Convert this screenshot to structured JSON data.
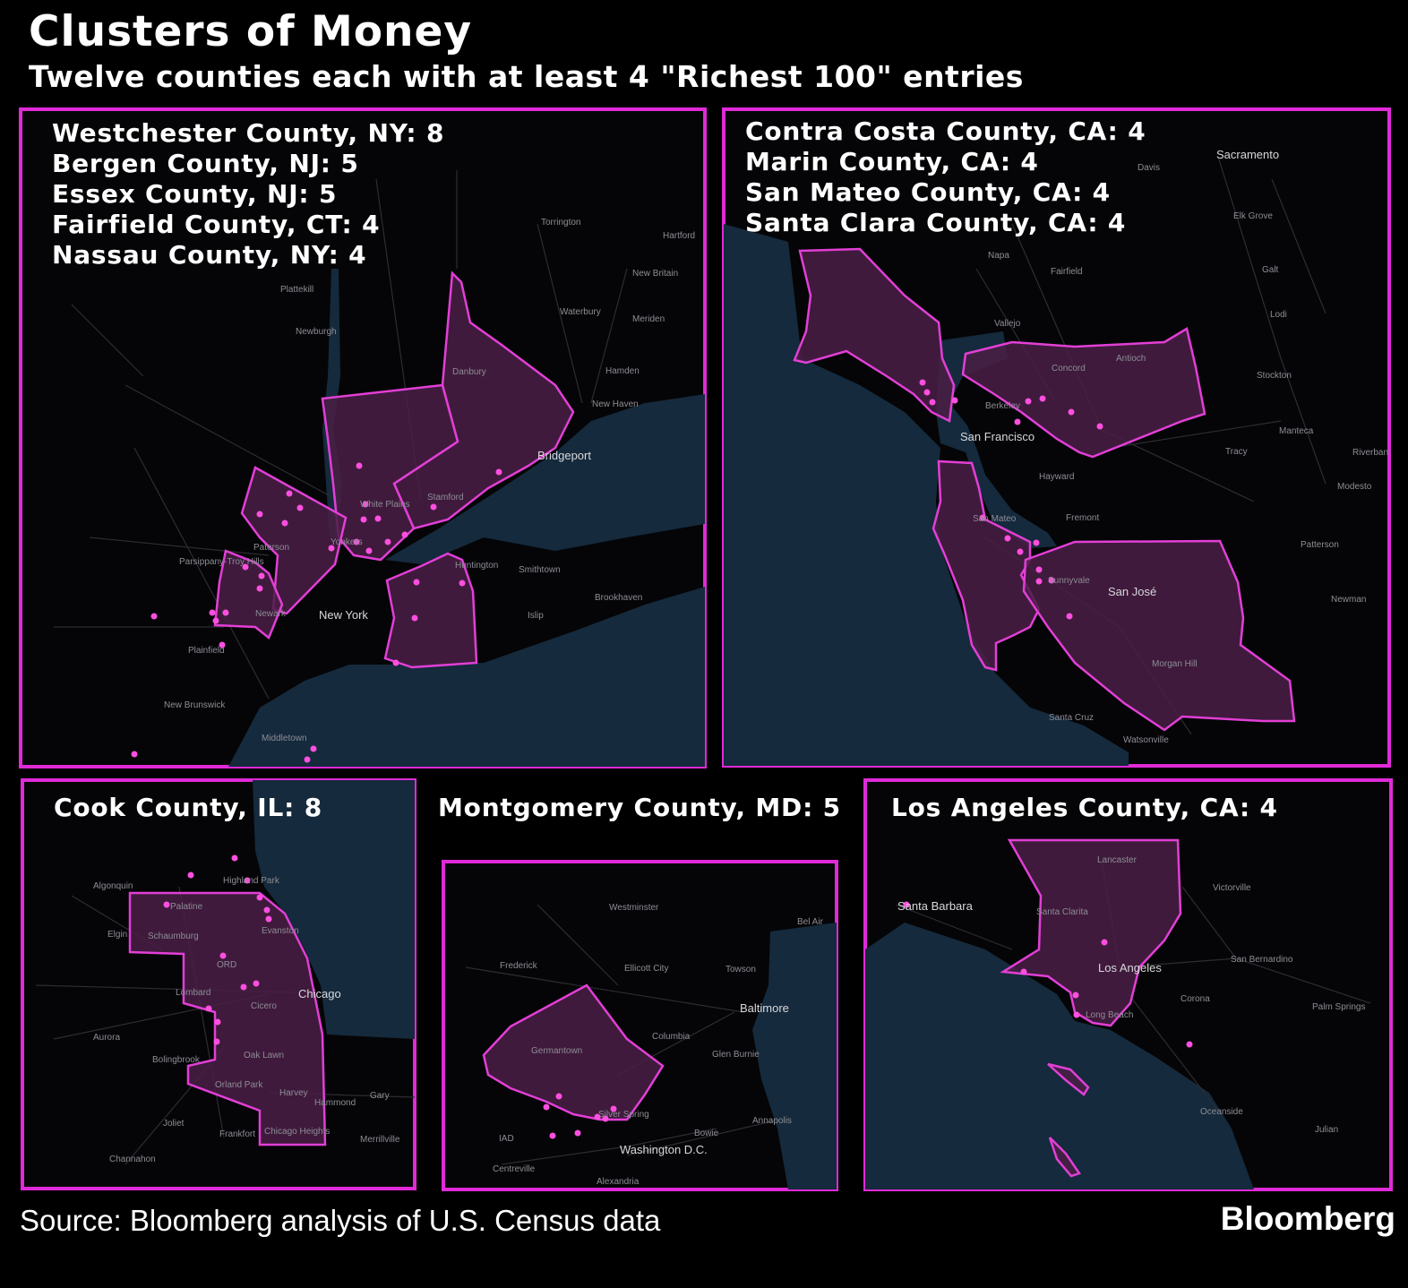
{
  "title": "Clusters of Money",
  "subtitle": "Twelve counties each with at least 4 \"Richest 100\" entries",
  "colors": {
    "border": "#e02ad8",
    "county_fill": "#4a1f45",
    "dot": "#ff4fe0",
    "water": "#152a3c",
    "land": "#050507"
  },
  "panels": {
    "northeast": {
      "counties": [
        "Westchester County, NY: 8",
        "Bergen County, NJ: 5",
        "Essex County, NJ: 5",
        "Fairfield County, CT: 4",
        "Nassau County, NY: 4"
      ],
      "cities": [
        "New York",
        "Bridgeport",
        "Stamford",
        "White Plains",
        "Yonkers",
        "Paterson",
        "Newark",
        "Huntington",
        "Danbury",
        "New Haven",
        "Waterbury",
        "Hartford",
        "Torrington",
        "Newburgh",
        "Plainfield",
        "New Brunswick",
        "Middletown",
        "Smithtown",
        "Brookhaven",
        "Islip",
        "Hamden",
        "Meriden",
        "New Britain",
        "Parsippany-Troy Hills",
        "Plattekill"
      ]
    },
    "bay_area": {
      "counties": [
        "Contra Costa County, CA: 4",
        "Marin County, CA: 4",
        "San Mateo County, CA: 4",
        "Santa Clara County, CA: 4"
      ],
      "cities": [
        "Sacramento",
        "San Francisco",
        "San José",
        "Concord",
        "Antioch",
        "Berkeley",
        "Vallejo",
        "Napa",
        "Fairfield",
        "Hayward",
        "Fremont",
        "San Mateo",
        "Sunnyvale",
        "Morgan Hill",
        "Santa Cruz",
        "Watsonville",
        "Stockton",
        "Tracy",
        "Manteca",
        "Modesto",
        "Lodi",
        "Galt",
        "Elk Grove",
        "Davis",
        "Patterson",
        "Newman",
        "Riverbank"
      ]
    },
    "cook": {
      "counties": [
        "Cook County, IL: 8"
      ],
      "cities": [
        "Chicago",
        "Evanston",
        "Highland Park",
        "Palatine",
        "Schaumburg",
        "Elgin",
        "Algonquin",
        "Lombard",
        "Cicero",
        "Oak Lawn",
        "Aurora",
        "Bolingbrook",
        "Orland Park",
        "Harvey",
        "Hammond",
        "Gary",
        "Joliet",
        "Frankfort",
        "Chicago Heights",
        "Merrillville",
        "Channahon",
        "ORD"
      ]
    },
    "montgomery": {
      "counties": [
        "Montgomery County, MD: 5"
      ],
      "cities": [
        "Washington D.C.",
        "Baltimore",
        "Silver Spring",
        "Germantown",
        "Frederick",
        "Columbia",
        "Towson",
        "Westminster",
        "Bel Air",
        "Ellicott City",
        "Glen Burnie",
        "Annapolis",
        "Bowie",
        "Centreville",
        "Alexandria",
        "IAD"
      ]
    },
    "los_angeles": {
      "counties": [
        "Los Angeles County, CA: 4"
      ],
      "cities": [
        "Los Angeles",
        "Santa Barbara",
        "San Bernardino",
        "Lancaster",
        "Santa Clarita",
        "Victorville",
        "Long Beach",
        "Corona",
        "Palm Springs",
        "Oceanside",
        "Julian"
      ]
    }
  },
  "source": "Source: Bloomberg analysis of U.S. Census data",
  "logo": "Bloomberg"
}
